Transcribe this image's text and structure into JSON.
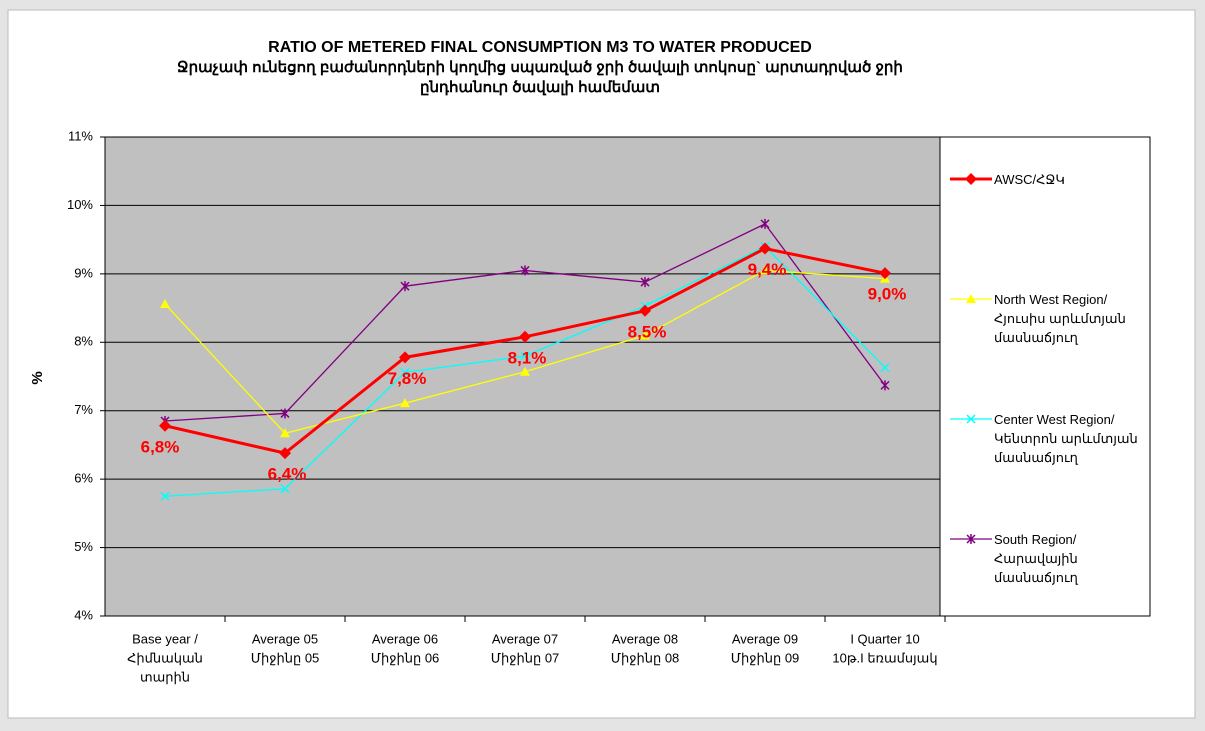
{
  "chart_data": {
    "type": "line",
    "title": "RATIO OF METERED FINAL CONSUMPTION M3 TO WATER PRODUCED",
    "subtitle": [
      "Ջրաչափ ունեցող բաժանորդների կողմից սպառված ջրի ծավալի տոկոսը` արտադրված ջրի",
      "ընդհանուր ծավալի համեմատ"
    ],
    "y_label": "%",
    "categories": [
      [
        "Base year /",
        "Հիմնական",
        "տարին"
      ],
      [
        "Average 05",
        "Միջինը 05"
      ],
      [
        "Average 06",
        "Միջինը 06"
      ],
      [
        "Average 07",
        "Միջինը 07"
      ],
      [
        "Average 08",
        "Միջինը 08"
      ],
      [
        "Average 09",
        "Միջինը 09"
      ],
      [
        "I Quarter 10",
        "10թ.I եռամսյակ"
      ]
    ],
    "ylim": [
      4,
      11
    ],
    "yticks": [
      {
        "value": 4,
        "label": "4%"
      },
      {
        "value": 5,
        "label": "5%"
      },
      {
        "value": 6,
        "label": "6%"
      },
      {
        "value": 7,
        "label": "7%"
      },
      {
        "value": 8,
        "label": "8%"
      },
      {
        "value": 9,
        "label": "9%"
      },
      {
        "value": 10,
        "label": "10%"
      },
      {
        "value": 11,
        "label": "11%"
      }
    ],
    "grid": true,
    "legend": "right",
    "series": [
      {
        "name": "AWSC/ՀՋԿ",
        "color": "#ff0000",
        "marker": "diamond",
        "values": [
          6.78,
          6.38,
          7.78,
          8.08,
          8.46,
          9.37,
          9.01
        ],
        "value_labels": [
          "6,8%",
          "6,4%",
          "7,8%",
          "8,1%",
          "8,5%",
          "9,4%",
          "9,0%"
        ]
      },
      {
        "name": "North West Region/ Հյուսիս արևմտյան մասնաճյուղ",
        "color": "#ffff00",
        "marker": "triangle",
        "values": [
          8.56,
          6.67,
          7.11,
          7.57,
          8.1,
          9.05,
          8.93
        ]
      },
      {
        "name": "Center West Region/ Կենտրոն արևմտյան մասնաճյուղ",
        "color": "#00ffff",
        "marker": "x",
        "values": [
          5.75,
          5.86,
          7.56,
          7.8,
          8.53,
          9.4,
          7.63
        ]
      },
      {
        "name": "South Region/ Հարավային մասնաճյուղ",
        "color": "#800080",
        "marker": "star",
        "values": [
          6.85,
          6.96,
          8.82,
          9.05,
          8.88,
          9.73,
          7.37
        ]
      }
    ]
  }
}
